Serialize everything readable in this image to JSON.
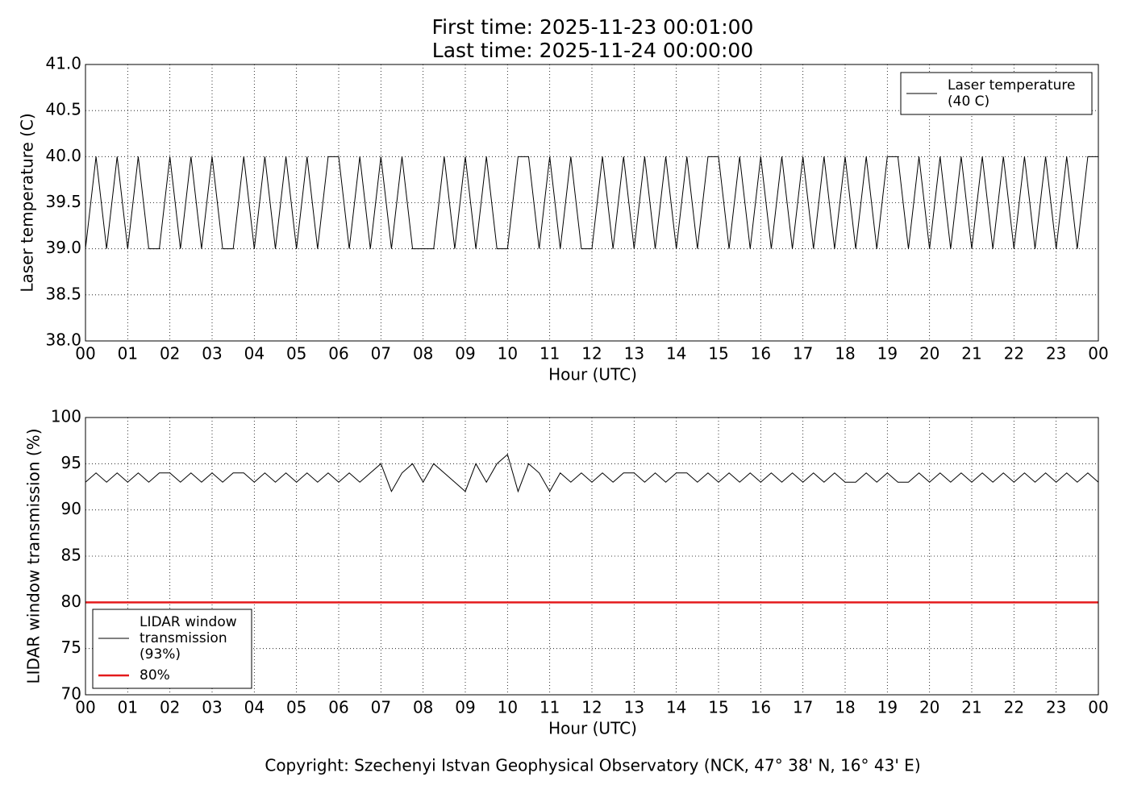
{
  "chart_data": [
    {
      "type": "line",
      "title": "First time: 2025-11-23 00:01:00",
      "subtitle": "Last time: 2025-11-24 00:00:00",
      "x_label": "Hour (UTC)",
      "y_label": "Laser temperature (C)",
      "x": [
        0,
        0.25,
        0.5,
        0.75,
        1,
        1.25,
        1.5,
        1.75,
        2,
        2.25,
        2.5,
        2.75,
        3,
        3.25,
        3.5,
        3.75,
        4,
        4.25,
        4.5,
        4.75,
        5,
        5.25,
        5.5,
        5.75,
        6,
        6.25,
        6.5,
        6.75,
        7,
        7.25,
        7.5,
        7.75,
        8,
        8.25,
        8.5,
        8.75,
        9,
        9.25,
        9.5,
        9.75,
        10,
        10.25,
        10.5,
        10.75,
        11,
        11.25,
        11.5,
        11.75,
        12,
        12.25,
        12.5,
        12.75,
        13,
        13.25,
        13.5,
        13.75,
        14,
        14.25,
        14.5,
        14.75,
        15,
        15.25,
        15.5,
        15.75,
        16,
        16.25,
        16.5,
        16.75,
        17,
        17.25,
        17.5,
        17.75,
        18,
        18.25,
        18.5,
        18.75,
        19,
        19.25,
        19.5,
        19.75,
        20,
        20.25,
        20.5,
        20.75,
        21,
        21.25,
        21.5,
        21.75,
        22,
        22.25,
        22.5,
        22.75,
        23,
        23.25,
        23.5,
        23.75,
        24
      ],
      "series": [
        {
          "name": "Laser temperature\n(40 C)",
          "color": "#000000",
          "values": [
            39,
            40,
            39,
            40,
            39,
            40,
            39,
            39,
            40,
            39,
            40,
            39,
            40,
            39,
            39,
            40,
            39,
            40,
            39,
            40,
            39,
            40,
            39,
            40,
            40,
            39,
            40,
            39,
            40,
            39,
            40,
            39,
            39,
            39,
            40,
            39,
            40,
            39,
            40,
            39,
            39,
            40,
            40,
            39,
            40,
            39,
            40,
            39,
            39,
            40,
            39,
            40,
            39,
            40,
            39,
            40,
            39,
            40,
            39,
            40,
            40,
            39,
            40,
            39,
            40,
            39,
            40,
            39,
            40,
            39,
            40,
            39,
            40,
            39,
            40,
            39,
            40,
            40,
            39,
            40,
            39,
            40,
            39,
            40,
            39,
            40,
            39,
            40,
            39,
            40,
            39,
            40,
            39,
            40,
            39,
            40,
            40
          ]
        }
      ],
      "xlim": [
        0,
        24
      ],
      "xticks": [
        {
          "value": 0,
          "label": "00"
        },
        {
          "value": 1,
          "label": "01"
        },
        {
          "value": 2,
          "label": "02"
        },
        {
          "value": 3,
          "label": "03"
        },
        {
          "value": 4,
          "label": "04"
        },
        {
          "value": 5,
          "label": "05"
        },
        {
          "value": 6,
          "label": "06"
        },
        {
          "value": 7,
          "label": "07"
        },
        {
          "value": 8,
          "label": "08"
        },
        {
          "value": 9,
          "label": "09"
        },
        {
          "value": 10,
          "label": "10"
        },
        {
          "value": 11,
          "label": "11"
        },
        {
          "value": 12,
          "label": "12"
        },
        {
          "value": 13,
          "label": "13"
        },
        {
          "value": 14,
          "label": "14"
        },
        {
          "value": 15,
          "label": "15"
        },
        {
          "value": 16,
          "label": "16"
        },
        {
          "value": 17,
          "label": "17"
        },
        {
          "value": 18,
          "label": "18"
        },
        {
          "value": 19,
          "label": "19"
        },
        {
          "value": 20,
          "label": "20"
        },
        {
          "value": 21,
          "label": "21"
        },
        {
          "value": 22,
          "label": "22"
        },
        {
          "value": 23,
          "label": "23"
        },
        {
          "value": 24,
          "label": "00"
        }
      ],
      "ylim": [
        38,
        41
      ],
      "yticks": [
        {
          "value": 38,
          "label": "38.0"
        },
        38.5,
        {
          "value": 39,
          "label": "39.0"
        },
        39.5,
        {
          "value": 40,
          "label": "40.0"
        },
        40.5,
        {
          "value": 41,
          "label": "41.0"
        }
      ],
      "grid": true,
      "legend": "upper right"
    },
    {
      "type": "line",
      "x_label": "Hour (UTC)",
      "y_label": "LIDAR window transmission (%)",
      "x": [
        0,
        0.25,
        0.5,
        0.75,
        1,
        1.25,
        1.5,
        1.75,
        2,
        2.25,
        2.5,
        2.75,
        3,
        3.25,
        3.5,
        3.75,
        4,
        4.25,
        4.5,
        4.75,
        5,
        5.25,
        5.5,
        5.75,
        6,
        6.25,
        6.5,
        6.75,
        7,
        7.25,
        7.5,
        7.75,
        8,
        8.25,
        8.5,
        8.75,
        9,
        9.25,
        9.5,
        9.75,
        10,
        10.25,
        10.5,
        10.75,
        11,
        11.25,
        11.5,
        11.75,
        12,
        12.25,
        12.5,
        12.75,
        13,
        13.25,
        13.5,
        13.75,
        14,
        14.25,
        14.5,
        14.75,
        15,
        15.25,
        15.5,
        15.75,
        16,
        16.25,
        16.5,
        16.75,
        17,
        17.25,
        17.5,
        17.75,
        18,
        18.25,
        18.5,
        18.75,
        19,
        19.25,
        19.5,
        19.75,
        20,
        20.25,
        20.5,
        20.75,
        21,
        21.25,
        21.5,
        21.75,
        22,
        22.25,
        22.5,
        22.75,
        23,
        23.25,
        23.5,
        23.75,
        24
      ],
      "series": [
        {
          "name": "LIDAR window\ntransmission\n(93%)",
          "color": "#000000",
          "values": [
            93,
            94,
            93,
            94,
            93,
            94,
            93,
            94,
            94,
            93,
            94,
            93,
            94,
            93,
            94,
            94,
            93,
            94,
            93,
            94,
            93,
            94,
            93,
            94,
            93,
            94,
            93,
            94,
            95,
            92,
            94,
            95,
            93,
            95,
            94,
            93,
            92,
            95,
            93,
            95,
            96,
            92,
            95,
            94,
            92,
            94,
            93,
            94,
            93,
            94,
            93,
            94,
            94,
            93,
            94,
            93,
            94,
            94,
            93,
            94,
            93,
            94,
            93,
            94,
            93,
            94,
            93,
            94,
            93,
            94,
            93,
            94,
            93,
            93,
            94,
            93,
            94,
            93,
            93,
            94,
            93,
            94,
            93,
            94,
            93,
            94,
            93,
            94,
            93,
            94,
            93,
            94,
            93,
            94,
            93,
            94,
            93
          ]
        },
        {
          "name": "80%",
          "color": "#e41a1c",
          "x": [
            0,
            24
          ],
          "values": [
            80,
            80
          ]
        }
      ],
      "xlim": [
        0,
        24
      ],
      "xticks": [
        {
          "value": 0,
          "label": "00"
        },
        {
          "value": 1,
          "label": "01"
        },
        {
          "value": 2,
          "label": "02"
        },
        {
          "value": 3,
          "label": "03"
        },
        {
          "value": 4,
          "label": "04"
        },
        {
          "value": 5,
          "label": "05"
        },
        {
          "value": 6,
          "label": "06"
        },
        {
          "value": 7,
          "label": "07"
        },
        {
          "value": 8,
          "label": "08"
        },
        {
          "value": 9,
          "label": "09"
        },
        {
          "value": 10,
          "label": "10"
        },
        {
          "value": 11,
          "label": "11"
        },
        {
          "value": 12,
          "label": "12"
        },
        {
          "value": 13,
          "label": "13"
        },
        {
          "value": 14,
          "label": "14"
        },
        {
          "value": 15,
          "label": "15"
        },
        {
          "value": 16,
          "label": "16"
        },
        {
          "value": 17,
          "label": "17"
        },
        {
          "value": 18,
          "label": "18"
        },
        {
          "value": 19,
          "label": "19"
        },
        {
          "value": 20,
          "label": "20"
        },
        {
          "value": 21,
          "label": "21"
        },
        {
          "value": 22,
          "label": "22"
        },
        {
          "value": 23,
          "label": "23"
        },
        {
          "value": 24,
          "label": "00"
        }
      ],
      "ylim": [
        70,
        100
      ],
      "yticks": [
        70,
        75,
        80,
        85,
        90,
        95,
        100
      ],
      "grid": true,
      "legend": "lower left"
    }
  ],
  "footer": "Copyright: Szechenyi Istvan Geophysical Observatory (NCK, 47° 38' N, 16° 43' E)"
}
